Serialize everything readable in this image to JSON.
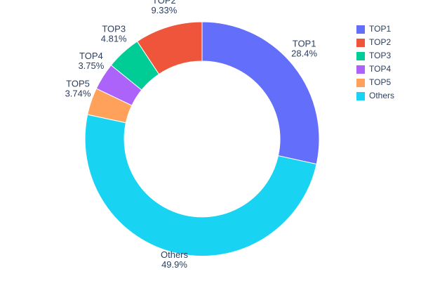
{
  "chart_data": {
    "type": "pie",
    "subtype": "donut",
    "title": "",
    "hole": 0.665,
    "labels": [
      "TOP1",
      "TOP2",
      "TOP3",
      "TOP4",
      "TOP5",
      "Others"
    ],
    "values": [
      28.4,
      9.33,
      4.81,
      3.75,
      3.74,
      49.9
    ],
    "percent_labels": [
      "28.4%",
      "9.33%",
      "4.81%",
      "3.75%",
      "3.74%",
      "49.9%"
    ],
    "colors": [
      "#636EFA",
      "#EF553B",
      "#00CC96",
      "#AB63FA",
      "#FFA15A",
      "#19D3F3"
    ],
    "draw_order": [
      "TOP1",
      "Others",
      "TOP5",
      "TOP4",
      "TOP3",
      "TOP2"
    ],
    "start_angle_deg": 0,
    "direction": "clockwise",
    "labels_position": "outside",
    "legend": {
      "position": "top-right",
      "entries": [
        "TOP1",
        "TOP2",
        "TOP3",
        "TOP4",
        "TOP5",
        "Others"
      ]
    },
    "text_color": "#2A3F5F",
    "background": "#FFFFFF"
  }
}
